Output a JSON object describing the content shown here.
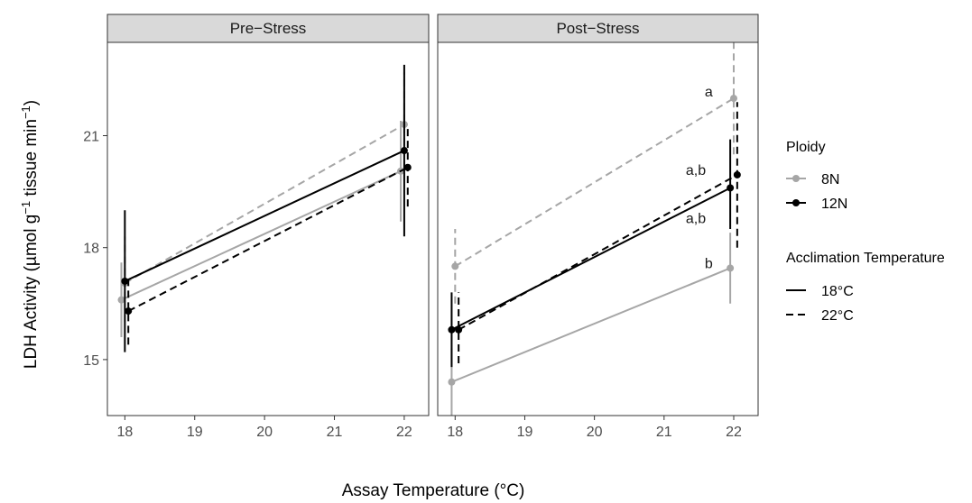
{
  "chart_data": {
    "type": "line",
    "xlabel": "Assay Temperature (°C)",
    "ylabel_parts": [
      "LDH Activity (µmol  g",
      "−1",
      " tissue min",
      "−1",
      ")"
    ],
    "xlim": [
      17.75,
      22.35
    ],
    "ylim": [
      13.5,
      23.5
    ],
    "x_ticks": [
      18,
      19,
      20,
      21,
      22
    ],
    "y_ticks": [
      15,
      18,
      21
    ],
    "colors": {
      "8N": "#a6a6a6",
      "12N": "#000000"
    },
    "legend": {
      "ploidy_title": "Ploidy",
      "ploidy_items": [
        {
          "label": "8N",
          "color": "#a6a6a6"
        },
        {
          "label": "12N",
          "color": "#000000"
        }
      ],
      "acclimation_title": "Acclimation Temperature",
      "acclimation_items": [
        {
          "label": "18°C",
          "dash": "solid"
        },
        {
          "label": "22°C",
          "dash": "dashed"
        }
      ]
    },
    "panels": [
      {
        "title": "Pre−Stress",
        "series": [
          {
            "ploidy": "8N",
            "acclimation": "18°C",
            "x": [
              17.95,
              21.95
            ],
            "y": [
              16.6,
              20.05
            ],
            "err_lo": [
              15.6,
              18.7
            ],
            "err_hi": [
              17.6,
              21.4
            ]
          },
          {
            "ploidy": "8N",
            "acclimation": "22°C",
            "x": [
              18.0,
              22.0
            ],
            "y": [
              17.05,
              21.3
            ],
            "err_lo": [
              16.0,
              19.8
            ],
            "err_hi": [
              18.3,
              22.7
            ]
          },
          {
            "ploidy": "12N",
            "acclimation": "18°C",
            "x": [
              18.0,
              22.0
            ],
            "y": [
              17.1,
              20.6
            ],
            "err_lo": [
              15.2,
              18.3
            ],
            "err_hi": [
              19.0,
              22.9
            ]
          },
          {
            "ploidy": "12N",
            "acclimation": "22°C",
            "x": [
              18.05,
              22.05
            ],
            "y": [
              16.3,
              20.15
            ],
            "err_lo": [
              15.4,
              19.1
            ],
            "err_hi": [
              17.2,
              21.2
            ]
          }
        ],
        "annotations": []
      },
      {
        "title": "Post−Stress",
        "series": [
          {
            "ploidy": "8N",
            "acclimation": "18°C",
            "x": [
              17.95,
              21.95
            ],
            "y": [
              14.4,
              17.45
            ],
            "err_lo": [
              13.5,
              16.5
            ],
            "err_hi": [
              15.3,
              18.4
            ]
          },
          {
            "ploidy": "8N",
            "acclimation": "22°C",
            "x": [
              18.0,
              22.0
            ],
            "y": [
              17.5,
              22.0
            ],
            "err_lo": [
              16.5,
              20.5
            ],
            "err_hi": [
              18.5,
              23.5
            ]
          },
          {
            "ploidy": "12N",
            "acclimation": "18°C",
            "x": [
              17.95,
              21.95
            ],
            "y": [
              15.8,
              19.6
            ],
            "err_lo": [
              14.8,
              18.5
            ],
            "err_hi": [
              16.8,
              20.9
            ]
          },
          {
            "ploidy": "12N",
            "acclimation": "22°C",
            "x": [
              18.05,
              22.05
            ],
            "y": [
              15.8,
              19.95
            ],
            "err_lo": [
              14.9,
              18.0
            ],
            "err_hi": [
              16.8,
              21.9
            ]
          }
        ],
        "annotations": [
          {
            "text": "a",
            "x": 21.7,
            "y": 22.2
          },
          {
            "text": "a,b",
            "x": 21.6,
            "y": 20.1
          },
          {
            "text": "a,b",
            "x": 21.6,
            "y": 18.8
          },
          {
            "text": "b",
            "x": 21.7,
            "y": 17.6
          }
        ]
      }
    ]
  }
}
